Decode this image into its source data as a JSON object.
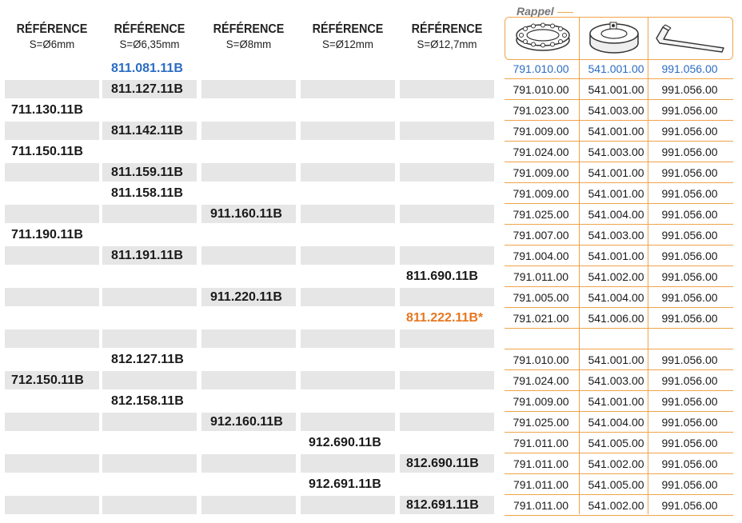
{
  "headers": [
    {
      "title": "RÉFÉRENCE",
      "sub": "S=Ø6mm"
    },
    {
      "title": "RÉFÉRENCE",
      "sub": "S=Ø6,35mm"
    },
    {
      "title": "RÉFÉRENCE",
      "sub": "S=Ø8mm"
    },
    {
      "title": "RÉFÉRENCE",
      "sub": "S=Ø12mm"
    },
    {
      "title": "RÉFÉRENCE",
      "sub": "S=Ø12,7mm"
    }
  ],
  "rappel_label": "Rappel",
  "icons": [
    "bearing-ring-icon",
    "shaft-collar-icon",
    "hex-key-icon"
  ],
  "colors": {
    "blue": "#2a6cc4",
    "orange": "#e8761e",
    "rule": "#f0a44a",
    "shade": "#e6e6e6"
  },
  "rows": [
    {
      "col": 1,
      "ref": "811.081.11B",
      "color": "blue",
      "r": [
        "791.010.00",
        "541.001.00",
        "991.056.00"
      ]
    },
    {
      "col": 1,
      "ref": "811.127.11B",
      "r": [
        "791.010.00",
        "541.001.00",
        "991.056.00"
      ]
    },
    {
      "col": 0,
      "ref": "711.130.11B",
      "r": [
        "791.023.00",
        "541.003.00",
        "991.056.00"
      ]
    },
    {
      "col": 1,
      "ref": "811.142.11B",
      "r": [
        "791.009.00",
        "541.001.00",
        "991.056.00"
      ]
    },
    {
      "col": 0,
      "ref": "711.150.11B",
      "r": [
        "791.024.00",
        "541.003.00",
        "991.056.00"
      ]
    },
    {
      "col": 1,
      "ref": "811.159.11B",
      "r": [
        "791.009.00",
        "541.001.00",
        "991.056.00"
      ]
    },
    {
      "col": 1,
      "ref": "811.158.11B",
      "r": [
        "791.009.00",
        "541.001.00",
        "991.056.00"
      ]
    },
    {
      "col": 2,
      "ref": "911.160.11B",
      "r": [
        "791.025.00",
        "541.004.00",
        "991.056.00"
      ]
    },
    {
      "col": 0,
      "ref": "711.190.11B",
      "r": [
        "791.007.00",
        "541.003.00",
        "991.056.00"
      ]
    },
    {
      "col": 1,
      "ref": "811.191.11B",
      "r": [
        "791.004.00",
        "541.001.00",
        "991.056.00"
      ]
    },
    {
      "col": 4,
      "ref": "811.690.11B",
      "r": [
        "791.011.00",
        "541.002.00",
        "991.056.00"
      ]
    },
    {
      "col": 2,
      "ref": "911.220.11B",
      "r": [
        "791.005.00",
        "541.004.00",
        "991.056.00"
      ]
    },
    {
      "col": 4,
      "ref": "811.222.11B*",
      "color": "orange",
      "r": [
        "791.021.00",
        "541.006.00",
        "991.056.00"
      ]
    },
    {
      "col": -1,
      "ref": "",
      "r": [
        "",
        "",
        ""
      ]
    },
    {
      "col": 1,
      "ref": "812.127.11B",
      "r": [
        "791.010.00",
        "541.001.00",
        "991.056.00"
      ]
    },
    {
      "col": 0,
      "ref": "712.150.11B",
      "r": [
        "791.024.00",
        "541.003.00",
        "991.056.00"
      ]
    },
    {
      "col": 1,
      "ref": "812.158.11B",
      "r": [
        "791.009.00",
        "541.001.00",
        "991.056.00"
      ]
    },
    {
      "col": 2,
      "ref": "912.160.11B",
      "r": [
        "791.025.00",
        "541.004.00",
        "991.056.00"
      ]
    },
    {
      "col": 3,
      "ref": "912.690.11B",
      "r": [
        "791.011.00",
        "541.005.00",
        "991.056.00"
      ]
    },
    {
      "col": 4,
      "ref": "812.690.11B",
      "r": [
        "791.011.00",
        "541.002.00",
        "991.056.00"
      ]
    },
    {
      "col": 3,
      "ref": "912.691.11B",
      "r": [
        "791.011.00",
        "541.005.00",
        "991.056.00"
      ]
    },
    {
      "col": 4,
      "ref": "812.691.11B",
      "r": [
        "791.011.00",
        "541.002.00",
        "991.056.00"
      ]
    }
  ]
}
